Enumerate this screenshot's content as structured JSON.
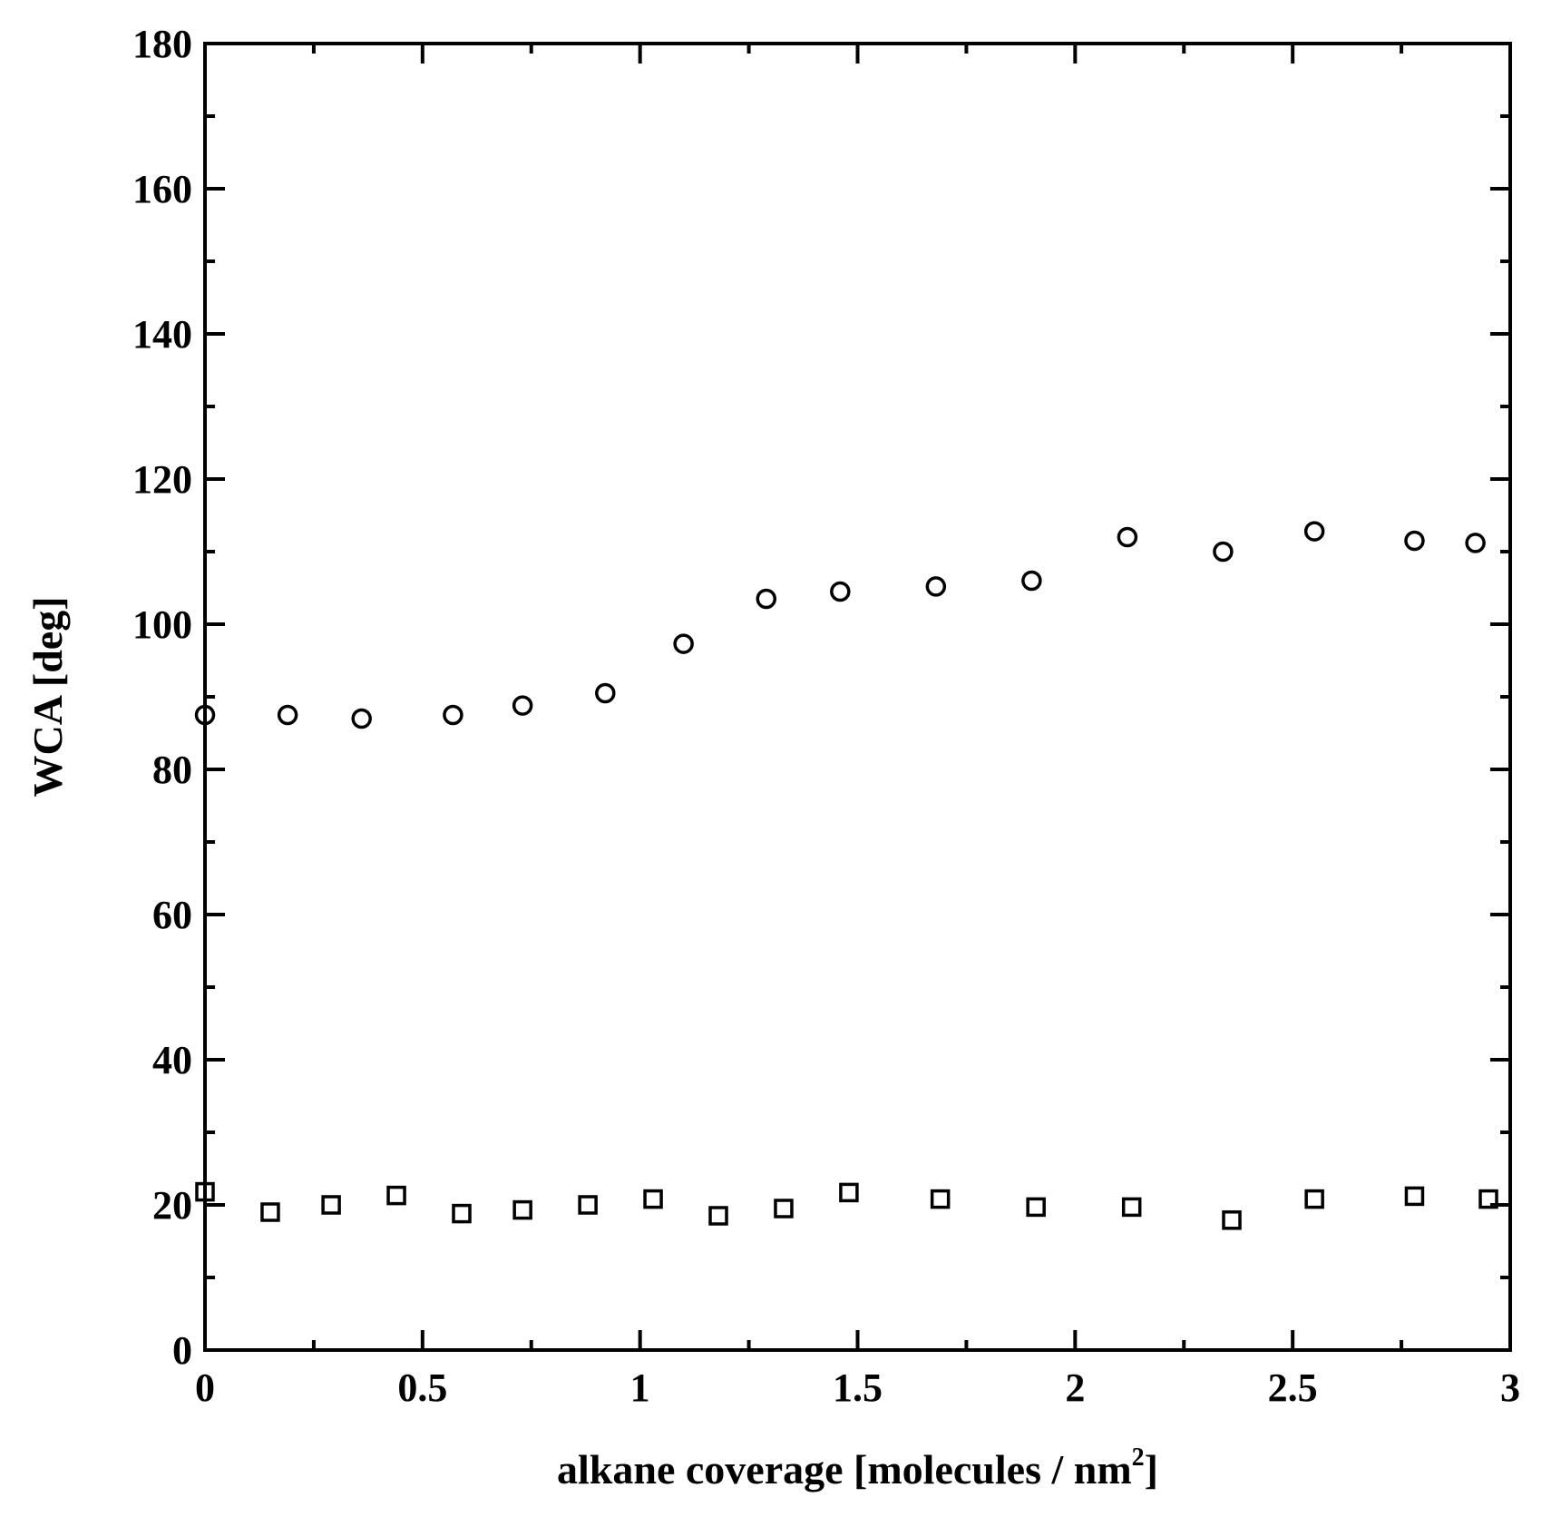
{
  "chart_data": {
    "type": "scatter",
    "xlabel": "alkane coverage [molecules / nm",
    "xlabel_superscript": "2",
    "xlabel_suffix": "]",
    "ylabel": "WCA [deg]",
    "xlim": [
      0,
      3
    ],
    "ylim": [
      0,
      180
    ],
    "x_ticks": [
      0,
      0.5,
      1,
      1.5,
      2,
      2.5,
      3
    ],
    "x_tick_labels": [
      "0",
      "0.5",
      "1",
      "1.5",
      "2",
      "2.5",
      "3"
    ],
    "y_ticks": [
      0,
      20,
      40,
      60,
      80,
      100,
      120,
      140,
      160,
      180
    ],
    "y_tick_labels": [
      "0",
      "20",
      "40",
      "60",
      "80",
      "100",
      "120",
      "140",
      "160",
      "180"
    ],
    "x_minor_step": 0.25,
    "y_minor_step": 10,
    "grid": false,
    "legend": "none",
    "colors": {
      "marker": "#000000",
      "axis": "#000000",
      "background": "#ffffff"
    },
    "series": [
      {
        "marker": "circle",
        "x": [
          0.0,
          0.19,
          0.36,
          0.57,
          0.73,
          0.92,
          1.1,
          1.29,
          1.46,
          1.68,
          1.9,
          2.12,
          2.34,
          2.55,
          2.78,
          2.92
        ],
        "y": [
          87.5,
          87.5,
          87.0,
          87.5,
          88.8,
          90.5,
          97.3,
          103.5,
          104.5,
          105.2,
          106.0,
          112.0,
          110.0,
          112.8,
          111.5,
          111.2
        ]
      },
      {
        "marker": "square",
        "x": [
          0.0,
          0.15,
          0.29,
          0.44,
          0.59,
          0.73,
          0.88,
          1.03,
          1.18,
          1.33,
          1.48,
          1.69,
          1.91,
          2.13,
          2.36,
          2.55,
          2.78,
          2.95
        ],
        "y": [
          21.8,
          19.0,
          20.0,
          21.3,
          18.8,
          19.3,
          20.0,
          20.8,
          18.5,
          19.5,
          21.7,
          20.8,
          19.7,
          19.7,
          17.9,
          20.8,
          21.2,
          20.8
        ]
      }
    ]
  }
}
